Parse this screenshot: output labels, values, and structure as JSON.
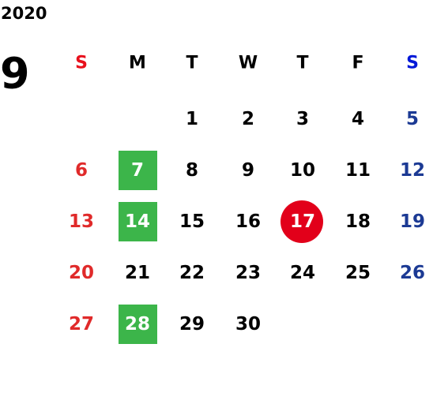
{
  "calendar": {
    "year": 2020,
    "month": 9,
    "weekdays": [
      "S",
      "M",
      "T",
      "W",
      "T",
      "F",
      "S"
    ],
    "header_colors": [
      "#e8101c",
      "#000000",
      "#000000",
      "#000000",
      "#000000",
      "#000000",
      "#0018d8"
    ],
    "column_colors": [
      "#e02a2a",
      "#000000",
      "#000000",
      "#000000",
      "#000000",
      "#000000",
      "#1c3a94"
    ],
    "highlight_colors": {
      "green": "#3cb54a",
      "red": "#e2001a"
    },
    "weeks": [
      [
        null,
        null,
        1,
        2,
        3,
        4,
        5
      ],
      [
        6,
        {
          "day": 7,
          "highlight": "green"
        },
        8,
        9,
        10,
        11,
        12
      ],
      [
        13,
        {
          "day": 14,
          "highlight": "green"
        },
        15,
        16,
        {
          "day": 17,
          "highlight": "red"
        },
        18,
        19
      ],
      [
        20,
        21,
        22,
        23,
        24,
        25,
        26
      ],
      [
        27,
        {
          "day": 28,
          "highlight": "green"
        },
        29,
        30,
        null,
        null,
        null
      ]
    ]
  }
}
